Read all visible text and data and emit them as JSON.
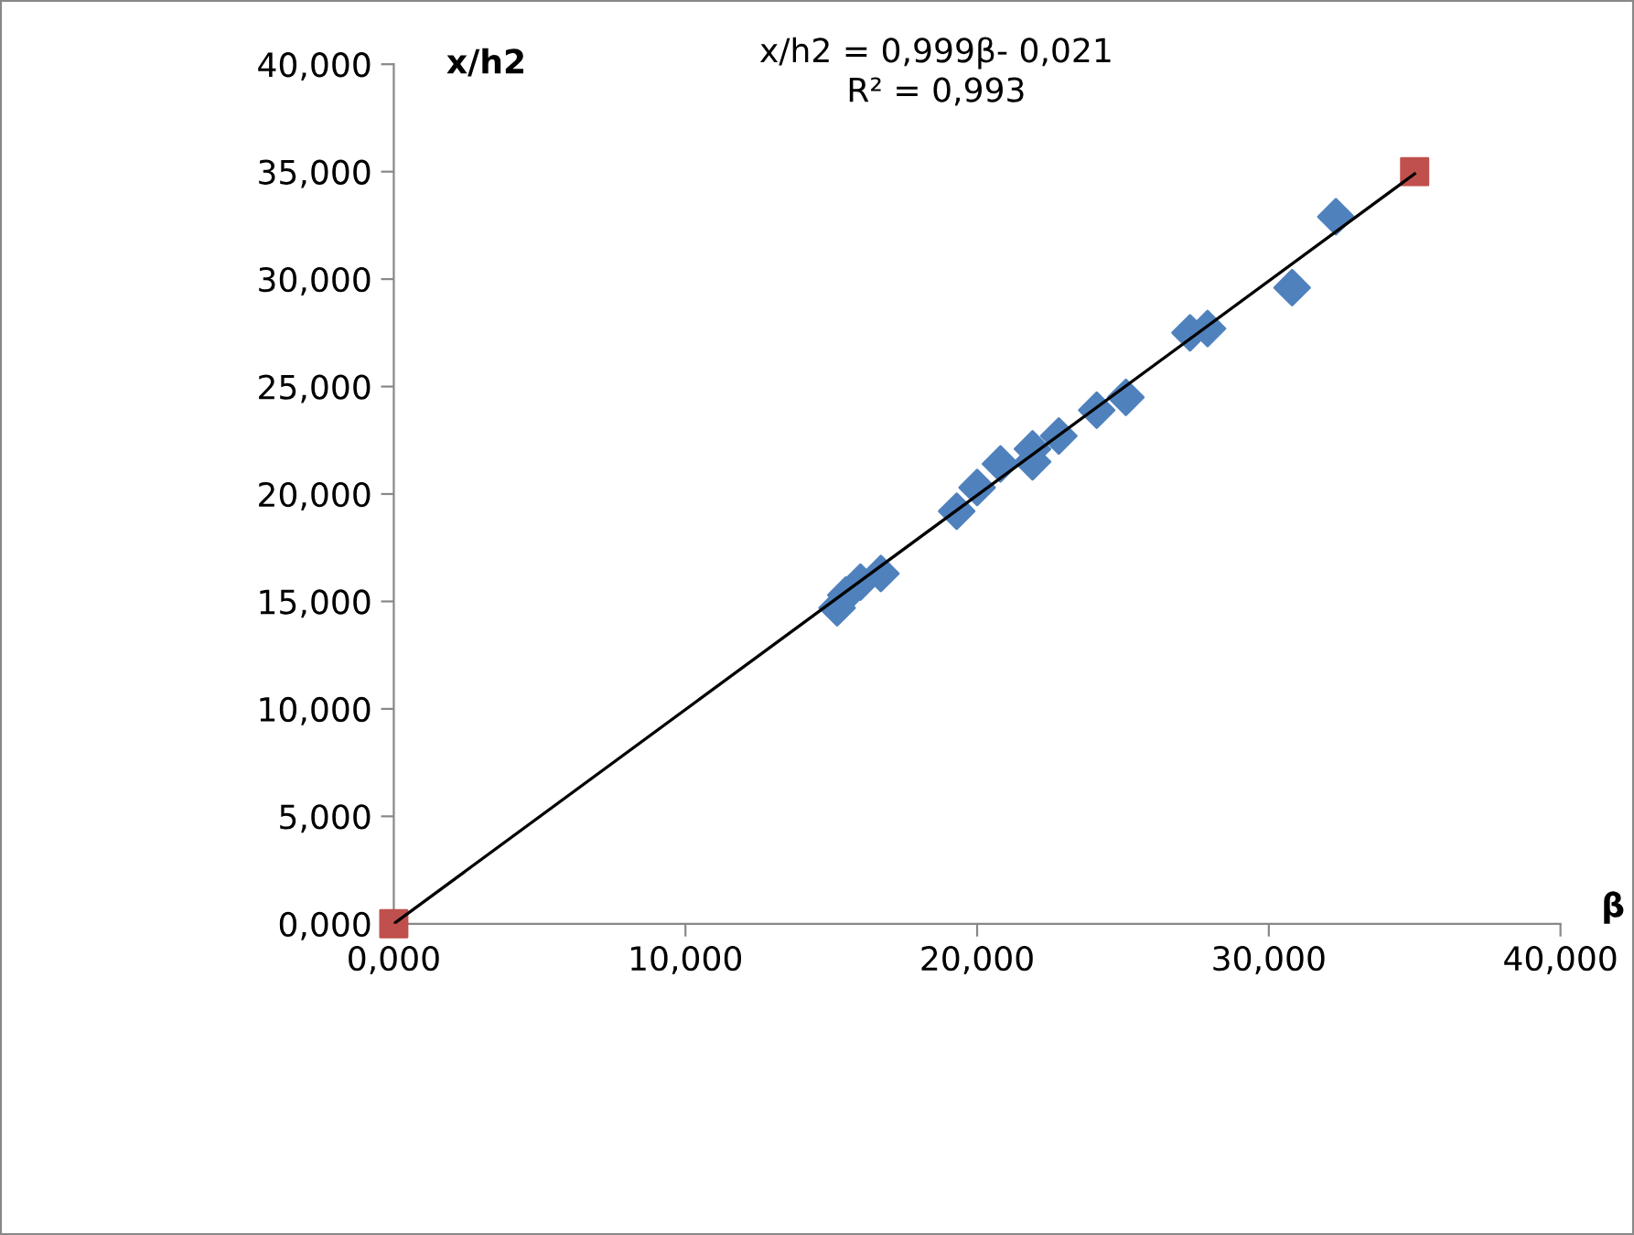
{
  "chart_data": {
    "type": "scatter",
    "xlabel": "β",
    "ylabel": "x/h2",
    "annotations": [
      "x/h2 = 0,999β- 0,021\nR² = 0,993"
    ],
    "series": [
      {
        "marker": "diamond",
        "color": "#4f81bd",
        "x": [
          15.2,
          15.5,
          16.0,
          16.7,
          19.3,
          20.0,
          20.8,
          21.9,
          21.9,
          22.8,
          24.1,
          25.1,
          27.3,
          27.9,
          30.8,
          32.3
        ],
        "values": [
          14.7,
          15.3,
          15.9,
          16.3,
          19.2,
          20.3,
          21.4,
          22.1,
          21.5,
          22.7,
          23.9,
          24.5,
          27.5,
          27.7,
          29.6,
          32.9
        ]
      },
      {
        "marker": "square",
        "color": "#c0504d",
        "x": [
          0,
          35
        ],
        "values": [
          0,
          35
        ]
      },
      {
        "type": "line",
        "color": "#000000",
        "x": [
          0,
          35
        ],
        "values": [
          0,
          34.9
        ]
      }
    ],
    "xlim": [
      0,
      40
    ],
    "ylim": [
      0,
      40
    ],
    "xticks": [
      {
        "value": 0,
        "label": "0,000"
      },
      {
        "value": 10,
        "label": "10,000"
      },
      {
        "value": 20,
        "label": "20,000"
      },
      {
        "value": 30,
        "label": "30,000"
      },
      {
        "value": 40,
        "label": "40,000"
      }
    ],
    "yticks": [
      {
        "value": 0,
        "label": "0,000"
      },
      {
        "value": 5,
        "label": "5,000"
      },
      {
        "value": 10,
        "label": "10,000"
      },
      {
        "value": 15,
        "label": "15,000"
      },
      {
        "value": 20,
        "label": "20,000"
      },
      {
        "value": 25,
        "label": "25,000"
      },
      {
        "value": 30,
        "label": "30,000"
      },
      {
        "value": 35,
        "label": "35,000"
      },
      {
        "value": 40,
        "label": "40,000"
      }
    ]
  }
}
